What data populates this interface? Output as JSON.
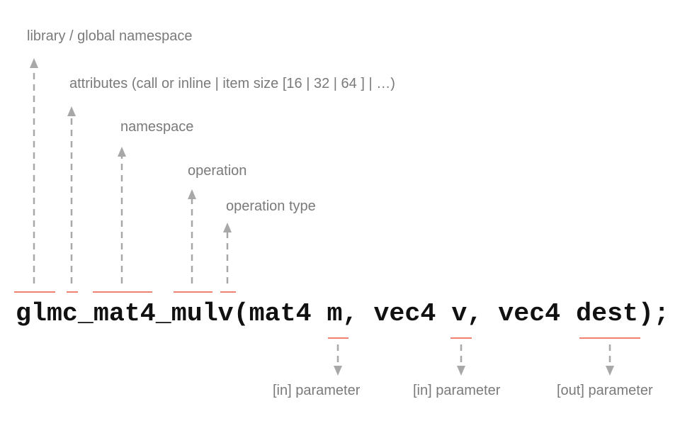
{
  "code": "glmc_mat4_mulv(mat4 m, vec4 v, vec4 dest);",
  "labels_above": [
    "library / global namespace",
    "attributes (call or inline | item size [16 | 32 | 64 ] | …)",
    "namespace",
    "operation",
    "operation type"
  ],
  "labels_below": [
    "[in] parameter",
    "[in] parameter",
    "[out] parameter"
  ],
  "colors": {
    "underline": "#f08070",
    "arrow": "#a8a8a8",
    "label": "#7a7a7a",
    "code": "#111111"
  }
}
